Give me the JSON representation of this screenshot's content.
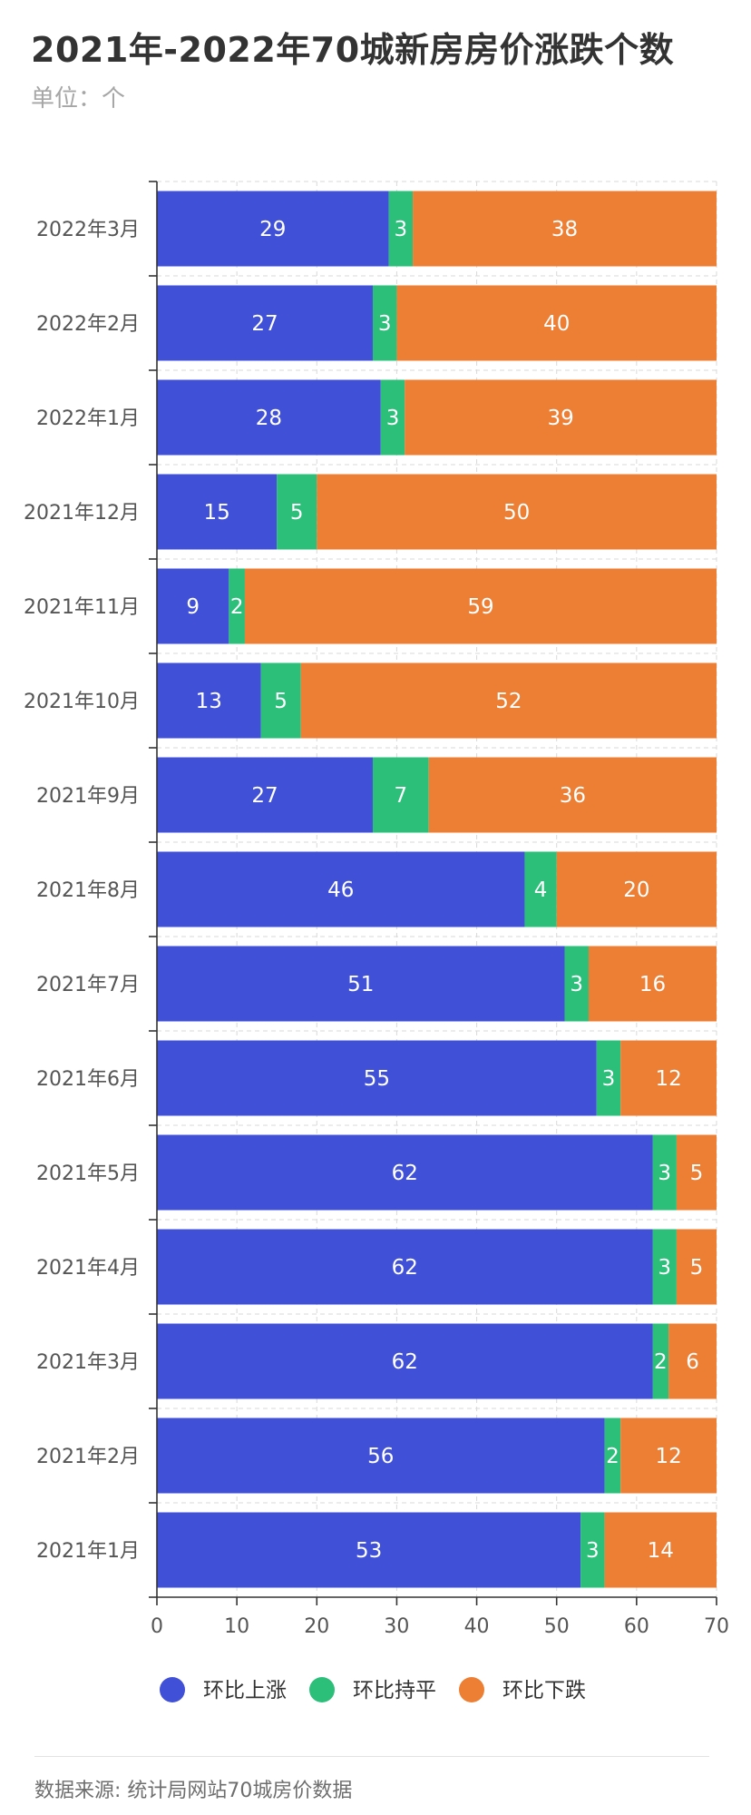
{
  "title": "2021年-2022年70城新房房价涨跌个数",
  "unit": "单位：个",
  "source": "数据来源: 统计局网站70城房价数据",
  "chart_data": {
    "type": "bar",
    "orientation": "horizontal",
    "stacked": true,
    "categories": [
      "2022年3月",
      "2022年2月",
      "2022年1月",
      "2021年12月",
      "2021年11月",
      "2021年10月",
      "2021年9月",
      "2021年8月",
      "2021年7月",
      "2021年6月",
      "2021年5月",
      "2021年4月",
      "2021年3月",
      "2021年2月",
      "2021年1月"
    ],
    "series": [
      {
        "name": "环比上涨",
        "color": "#4051d8",
        "values": [
          29,
          27,
          28,
          15,
          9,
          13,
          27,
          46,
          51,
          55,
          62,
          62,
          62,
          56,
          53
        ]
      },
      {
        "name": "环比持平",
        "color": "#2bbf7a",
        "values": [
          3,
          3,
          3,
          5,
          2,
          5,
          7,
          4,
          3,
          3,
          3,
          3,
          2,
          2,
          3
        ]
      },
      {
        "name": "环比下跌",
        "color": "#ed7f34",
        "values": [
          38,
          40,
          39,
          50,
          59,
          52,
          36,
          20,
          16,
          12,
          5,
          5,
          6,
          12,
          14
        ]
      }
    ],
    "xlim": [
      0,
      70
    ],
    "xticks": [
      0,
      10,
      20,
      30,
      40,
      50,
      60,
      70
    ],
    "grid": true,
    "legend": "bottom",
    "label_color": "#ffffff",
    "axis_color": "#333333",
    "tick_label_color": "#555555",
    "grid_color": "#d9d9d9"
  }
}
